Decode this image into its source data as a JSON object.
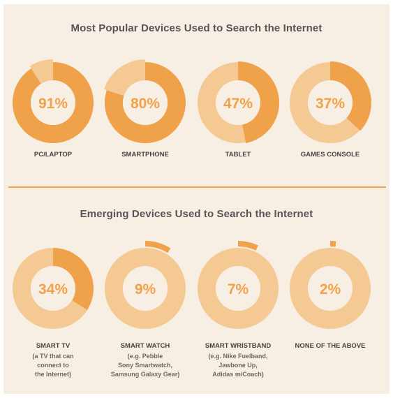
{
  "sections": [
    {
      "title": "Most Popular Devices Used to Search the Internet"
    },
    {
      "title": "Emerging Devices Used to Search the Internet"
    }
  ],
  "colors": {
    "background": "#f7efe3",
    "accent": "#f0a24a",
    "ring_light": "#f5c993",
    "label_text": "#444444",
    "title_text": "#555555",
    "percent_text": "#f0a24a"
  },
  "chart_data": [
    {
      "type": "pie",
      "title": "Most Popular Devices Used to Search the Internet",
      "categories": [
        "PC/LAPTOP",
        "SMARTPHONE",
        "TABLET",
        "GAMES CONSOLE"
      ],
      "values": [
        91,
        80,
        47,
        37
      ],
      "value_labels": [
        "91%",
        "80%",
        "47%",
        "37%"
      ],
      "unit": "%"
    },
    {
      "type": "pie",
      "title": "Emerging Devices Used to Search the Internet",
      "categories": [
        "SMART TV",
        "SMART WATCH",
        "SMART WRISTBAND",
        "NONE OF THE ABOVE"
      ],
      "values": [
        34,
        9,
        7,
        2
      ],
      "value_labels": [
        "34%",
        "9%",
        "7%",
        "2%"
      ],
      "unit": "%",
      "sublabels": [
        [
          "(a TV that can",
          "connect to",
          "the Internet)"
        ],
        [
          "(e.g. Pebble",
          "Sony Smartwatch,",
          "Samsung Galaxy Gear)"
        ],
        [
          "(e.g. Nike Fuelband,",
          "Jawbone Up,",
          "Adidas miCoach)"
        ],
        []
      ]
    }
  ]
}
